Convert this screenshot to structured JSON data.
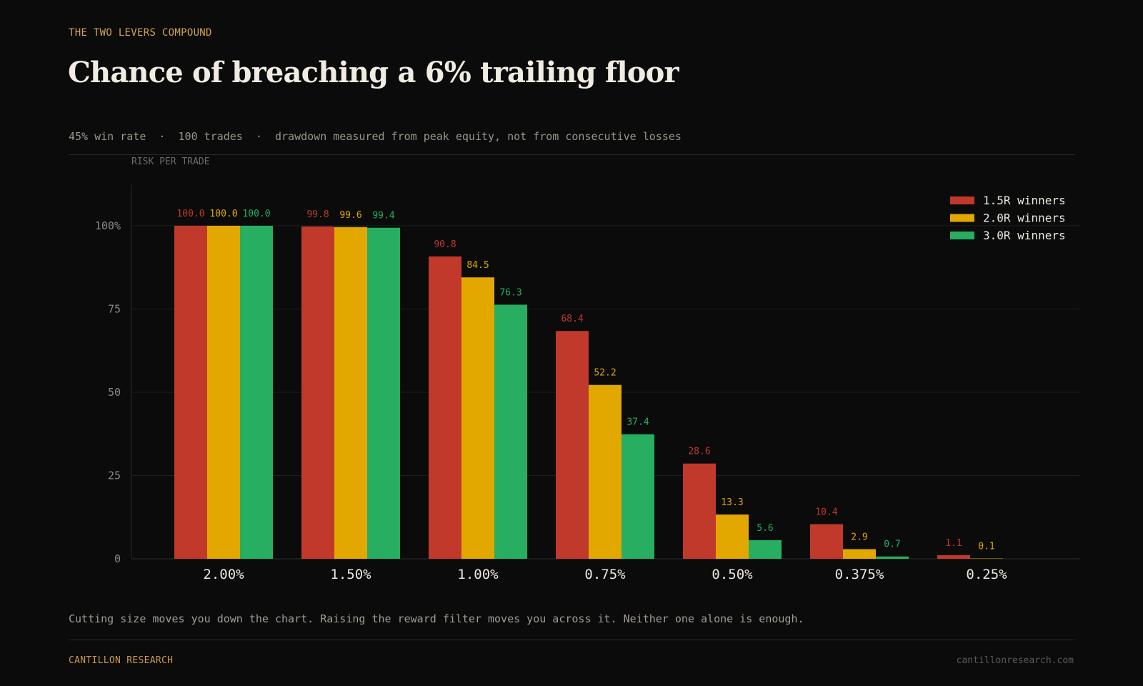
{
  "header": {
    "eyebrow": "THE TWO LEVERS COMPOUND",
    "title": "Chance of breaching a 6% trailing floor",
    "subtitle": "45% win rate  ·  100 trades  ·  drawdown measured from peak equity, not from consecutive losses"
  },
  "chart_data": {
    "type": "bar",
    "title": "Chance of breaching a 6% trailing floor",
    "xlabel": "RISK PER TRADE",
    "ylabel": "",
    "categories": [
      "2.00%",
      "1.50%",
      "1.00%",
      "0.75%",
      "0.50%",
      "0.375%",
      "0.25%"
    ],
    "ylim": [
      0,
      112
    ],
    "yticks": [
      0,
      25,
      50,
      75,
      100
    ],
    "ytick_labels": [
      "0",
      "25",
      "50",
      "75",
      "100%"
    ],
    "grid": true,
    "legend_position": "top-right",
    "series": [
      {
        "name": "1.5R winners",
        "color": "#c0392b",
        "values": [
          100.0,
          99.8,
          90.8,
          68.4,
          28.6,
          10.4,
          1.1
        ],
        "labels": [
          "100.0",
          "99.8",
          "90.8",
          "68.4",
          "28.6",
          "10.4",
          "1.1"
        ]
      },
      {
        "name": "2.0R winners",
        "color": "#e2a800",
        "values": [
          100.0,
          99.6,
          84.5,
          52.2,
          13.3,
          2.9,
          0.1
        ],
        "labels": [
          "100.0",
          "99.6",
          "84.5",
          "52.2",
          "13.3",
          "2.9",
          "0.1"
        ]
      },
      {
        "name": "3.0R winners",
        "color": "#27ae60",
        "values": [
          100.0,
          99.4,
          76.3,
          37.4,
          5.6,
          0.7,
          0.0
        ],
        "labels": [
          "100.0",
          "99.4",
          "76.3",
          "37.4",
          "5.6",
          "0.7",
          ""
        ]
      }
    ]
  },
  "caption": "Cutting size moves you down the chart. Raising the reward filter moves you across it. Neither one alone is enough.",
  "footer": {
    "brand": "CANTILLON RESEARCH",
    "url": "cantillonresearch.com"
  }
}
